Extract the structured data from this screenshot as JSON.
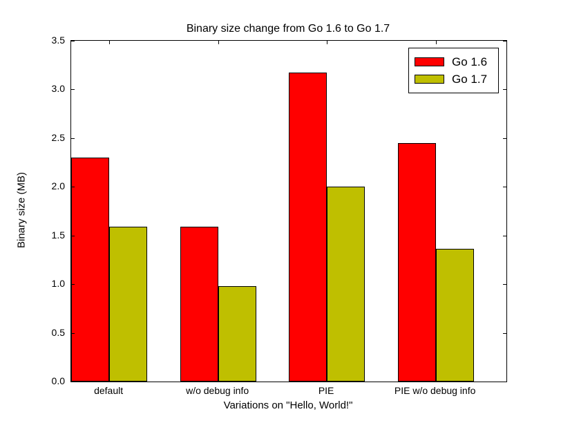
{
  "chart_data": {
    "type": "bar",
    "title": "Binary size change from Go 1.6 to Go 1.7",
    "xlabel": "Variations on \"Hello, World!\"",
    "ylabel": "Binary size (MB)",
    "categories": [
      "default",
      "w/o debug info",
      "PIE",
      "PIE w/o debug info"
    ],
    "series": [
      {
        "name": "Go 1.6",
        "color": "#ff0000",
        "values": [
          2.3,
          1.59,
          3.17,
          2.45
        ]
      },
      {
        "name": "Go 1.7",
        "color": "#bfbf00",
        "values": [
          1.59,
          0.98,
          2.0,
          1.36
        ]
      }
    ],
    "ylim": [
      0,
      3.5
    ],
    "ytick_step": 0.5,
    "ytick_labels": [
      "0.0",
      "0.5",
      "1.0",
      "1.5",
      "2.0",
      "2.5",
      "3.0",
      "3.5"
    ],
    "bar_width_fraction": 0.35,
    "grid": false,
    "legend_position": "upper right",
    "edge_color": "#000000",
    "background_color": "#ffffff"
  }
}
